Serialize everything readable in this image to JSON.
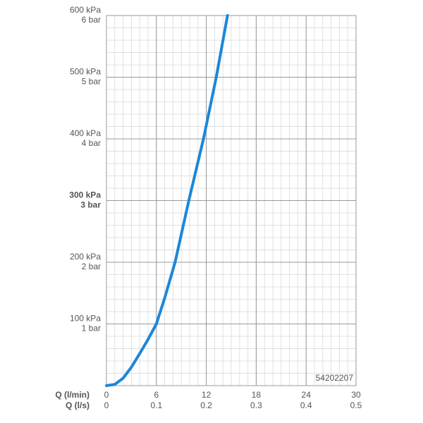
{
  "chart_data": {
    "type": "line",
    "x": [
      0,
      1,
      2,
      3,
      4,
      5,
      6,
      7,
      8.25,
      9.9,
      11.66,
      13.2,
      14.55
    ],
    "series": [
      {
        "color": "#1b87d9",
        "values": [
          0,
          2,
          12,
          30,
          52,
          75,
          100,
          142,
          200,
          300,
          400,
          500,
          600
        ]
      }
    ],
    "xlim": [
      0,
      30
    ],
    "ylim": [
      0,
      600
    ],
    "xticks": [
      0,
      6,
      12,
      18,
      24,
      30
    ],
    "x_label": "Q (l/min)",
    "x2ticks": [
      0,
      0.1,
      0.2,
      0.3,
      0.4,
      0.5
    ],
    "x2_label": "Q (l/s)",
    "yticks": [
      {
        "value": 100,
        "label": "100 kPa"
      },
      {
        "value": 200,
        "label": "200 kPa"
      },
      {
        "value": 300,
        "label": "300 kPa"
      },
      {
        "value": 400,
        "label": "400 kPa"
      },
      {
        "value": 500,
        "label": "500 kPa"
      },
      {
        "value": 600,
        "label": "600 kPa"
      }
    ],
    "ytick_bar_labels": [
      "1 bar",
      "2 bar",
      "3 bar",
      "4 bar",
      "5 bar",
      "6 bar"
    ],
    "bold_ytick": 300,
    "grid": true,
    "minor_xstep": 1,
    "minor_ystep": 20,
    "annotation": "54202207"
  }
}
